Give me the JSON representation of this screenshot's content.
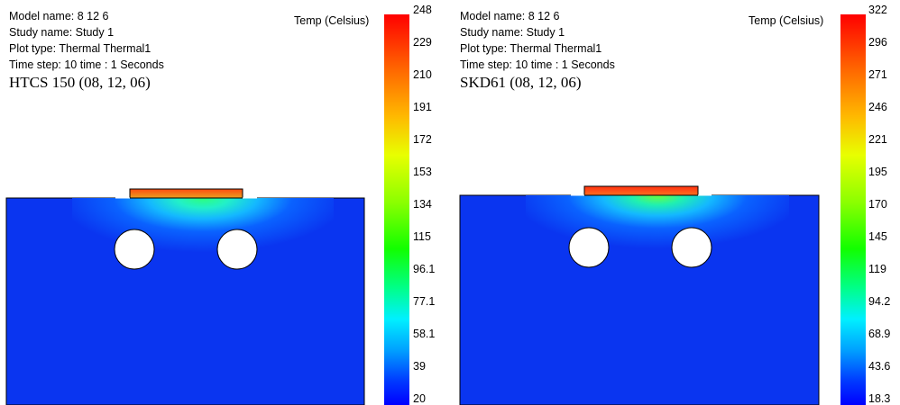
{
  "panels": [
    {
      "id": "left",
      "info": {
        "model_name": "Model name: 8 12 6",
        "study_name": "Study name: Study 1",
        "plot_type": "Plot type: Thermal Thermal1",
        "time_step": "Time step: 10   time : 1 Seconds",
        "title": "HTCS 150 (08, 12, 06)"
      },
      "scale_label": "Temp (Celsius)",
      "scale_ticks": [
        "248",
        "229",
        "210",
        "191",
        "172",
        "153",
        "134",
        "115",
        "96.1",
        "77.1",
        "58.1",
        "39",
        "20"
      ]
    },
    {
      "id": "right",
      "info": {
        "model_name": "Model name: 8 12 6",
        "study_name": "Study name: Study 1",
        "plot_type": "Plot type: Thermal Thermal1",
        "time_step": "Time step: 10   time : 1 Seconds",
        "title": "SKD61 (08, 12, 06)"
      },
      "scale_label": "Temp (Celsius)",
      "scale_ticks": [
        "322",
        "296",
        "271",
        "246",
        "221",
        "195",
        "170",
        "145",
        "119",
        "94.2",
        "68.9",
        "43.6",
        "18.3"
      ]
    }
  ],
  "colors": {
    "block": "#0a35f0",
    "hot_top": "#ff4a10",
    "hot_bottom": "#e8a020"
  }
}
